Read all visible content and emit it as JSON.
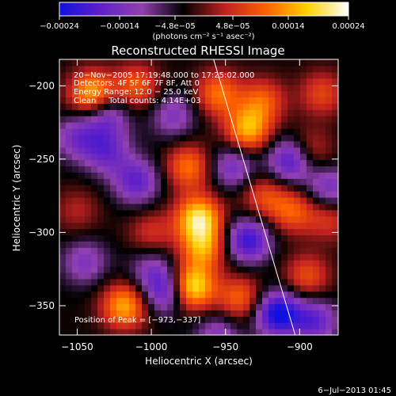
{
  "chart_data": {
    "type": "heatmap",
    "title": "Reconstructed RHESSI Image",
    "xlabel": "Heliocentric X (arcsec)",
    "ylabel": "Heliocentric Y (arcsec)",
    "xlim": [
      -1062,
      -874
    ],
    "ylim": [
      -370,
      -182
    ],
    "x_ticks": [
      -1050,
      -1000,
      -950,
      -900
    ],
    "y_ticks": [
      -350,
      -300,
      -250,
      -200
    ],
    "x_tick_labels": [
      "−1050",
      "−1000",
      "−950",
      "−900"
    ],
    "y_tick_labels": [
      "−350",
      "−300",
      "−250",
      "−200"
    ],
    "colorbar": {
      "range": [
        -0.00024,
        0.00024
      ],
      "ticks": [
        -0.00024,
        -0.00014,
        -4.8e-05,
        4.8e-05,
        0.00014,
        0.00024
      ],
      "tick_labels": [
        "−0.00024",
        "−0.00014",
        "−4.8e−05",
        "4.8e−05",
        "0.00014",
        "0.00024"
      ],
      "unit_label": "(photons cm⁻² s⁻¹ asec⁻²)",
      "colors": [
        "#1010e0",
        "#6020c8",
        "#9040b0",
        "#000000",
        "#c02020",
        "#ff6000",
        "#ffd000",
        "#ffffff"
      ]
    },
    "annotations": [
      "20−Nov−2005 17:19:48.000 to 17:25:02.000",
      "Detectors: 4F 5F 6F 7F 8F, Att 0",
      "Energy Range: 12.0 − 25.0 keV",
      "Clean     Total counts: 4.14E+03"
    ],
    "peak_label": "Position of Peak = [−973,−337]",
    "peak": [
      -973,
      -337
    ],
    "limb_line": [
      [
        -958,
        -182
      ],
      [
        -903,
        -370
      ]
    ],
    "sources": [
      {
        "x": -973,
        "y": -337,
        "value": 0.00024
      },
      {
        "x": -968,
        "y": -290,
        "value": 0.00022
      },
      {
        "x": -965,
        "y": -310,
        "value": 0.00016
      },
      {
        "x": -1018,
        "y": -350,
        "value": 0.00018
      },
      {
        "x": -1040,
        "y": -205,
        "value": 0.00019
      },
      {
        "x": -1010,
        "y": -200,
        "value": 0.00012
      },
      {
        "x": -955,
        "y": -205,
        "value": 0.00014
      },
      {
        "x": -935,
        "y": -230,
        "value": 0.00018
      },
      {
        "x": -925,
        "y": -210,
        "value": 0.00012
      },
      {
        "x": -895,
        "y": -245,
        "value": 0.00012
      },
      {
        "x": -885,
        "y": -205,
        "value": 0.0001
      },
      {
        "x": -975,
        "y": -255,
        "value": 0.00014
      },
      {
        "x": -1000,
        "y": -300,
        "value": 8e-05
      },
      {
        "x": -925,
        "y": -275,
        "value": 0.0001
      },
      {
        "x": -905,
        "y": -285,
        "value": 0.00012
      },
      {
        "x": -940,
        "y": -345,
        "value": 0.00013
      },
      {
        "x": -895,
        "y": -330,
        "value": 0.00011
      },
      {
        "x": -1050,
        "y": -285,
        "value": 6e-05
      },
      {
        "x": -880,
        "y": -290,
        "value": 9e-05
      },
      {
        "x": -1030,
        "y": -245,
        "value": -0.00012
      },
      {
        "x": -1010,
        "y": -265,
        "value": -0.00014
      },
      {
        "x": -1045,
        "y": -320,
        "value": -0.0001
      },
      {
        "x": -1050,
        "y": -235,
        "value": -0.00011
      },
      {
        "x": -990,
        "y": -340,
        "value": -0.00016
      },
      {
        "x": -915,
        "y": -355,
        "value": -0.00022
      },
      {
        "x": -905,
        "y": -250,
        "value": -0.0002
      },
      {
        "x": -935,
        "y": -305,
        "value": -0.00018
      },
      {
        "x": -945,
        "y": -255,
        "value": -0.00012
      },
      {
        "x": -985,
        "y": -220,
        "value": -0.0001
      },
      {
        "x": -1030,
        "y": -220,
        "value": -0.00012
      },
      {
        "x": -890,
        "y": -360,
        "value": -0.00014
      },
      {
        "x": -1000,
        "y": -325,
        "value": -8e-05
      },
      {
        "x": -955,
        "y": -370,
        "value": -0.0001
      },
      {
        "x": -880,
        "y": -270,
        "value": -0.00012
      }
    ]
  },
  "footer_date": "6−Jul−2013 01:45"
}
